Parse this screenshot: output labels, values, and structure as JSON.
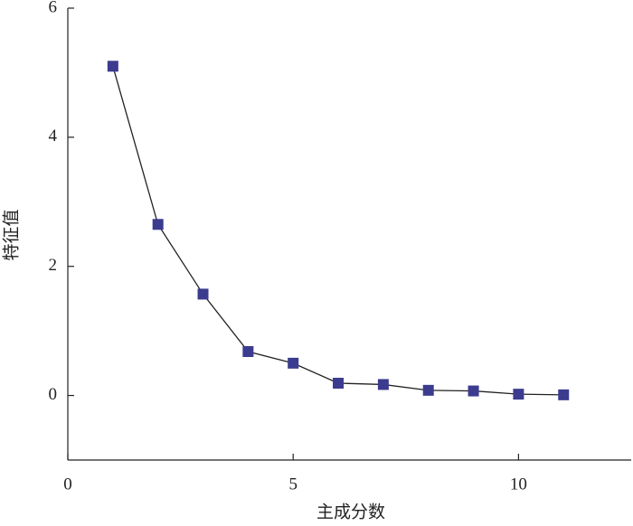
{
  "chart_data": {
    "type": "line",
    "x_label": "主成分数",
    "y_label": "特征值",
    "x": [
      1,
      2,
      3,
      4,
      5,
      6,
      7,
      8,
      9,
      10,
      11
    ],
    "values": [
      5.1,
      2.65,
      1.57,
      0.68,
      0.5,
      0.19,
      0.17,
      0.08,
      0.07,
      0.02,
      0.01
    ],
    "color": "#3b3b8f",
    "line_color": "#222222",
    "marker": "square",
    "xlim": [
      0,
      12.5
    ],
    "xticks": [
      0,
      5,
      10
    ],
    "ylim": [
      -1,
      6
    ],
    "yticks": [
      0,
      2,
      4,
      6
    ]
  }
}
